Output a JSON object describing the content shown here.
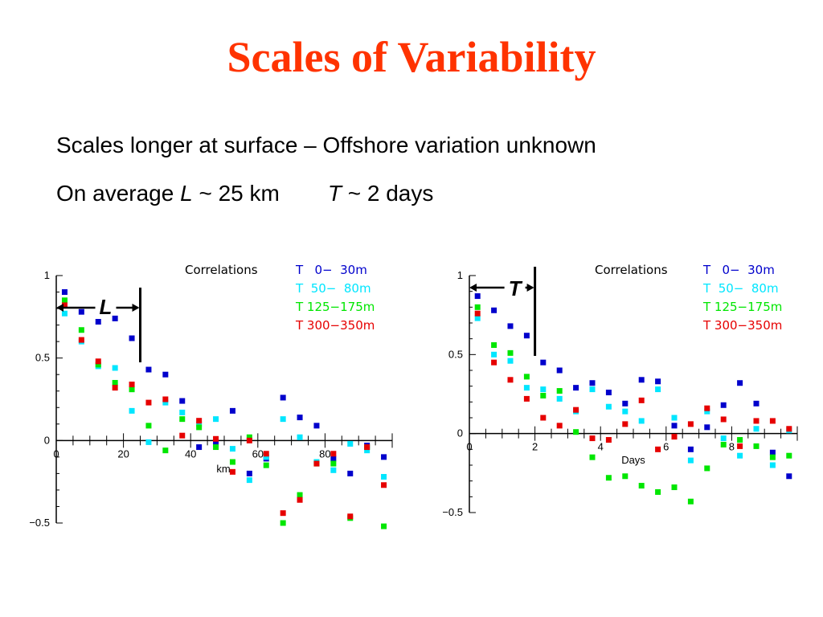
{
  "slide": {
    "title": "Scales of Variability",
    "line1": "Scales longer at surface – Offshore variation unknown",
    "line2": {
      "prefix": "On average ",
      "L": "L",
      "L_value": " ~ 25 km",
      "T": "T",
      "T_value": " ~ 2 days"
    }
  },
  "colors": {
    "title": "#ff3300",
    "series": [
      "#0000cc",
      "#00e6ff",
      "#00e600",
      "#e60000"
    ]
  },
  "chart_data": [
    {
      "type": "scatter",
      "title": "Correlations",
      "xlabel": "km",
      "ylabel": "",
      "xlim": [
        0,
        100
      ],
      "ylim": [
        -0.5,
        1
      ],
      "x_ticks": [
        0,
        20,
        40,
        60,
        80
      ],
      "y_ticks": [
        -0.5,
        0,
        0.5,
        1
      ],
      "y_tick_labels": [
        "−0.5",
        "0",
        "0.5",
        "1"
      ],
      "legend_position": "top-right",
      "marker": {
        "label": "L",
        "x": 25
      },
      "series": [
        {
          "name": "T   0−  30m",
          "x": [
            2.5,
            7.5,
            12.5,
            17.5,
            22.5,
            27.5,
            32.5,
            37.5,
            42.5,
            47.5,
            52.5,
            57.5,
            62.5,
            67.5,
            72.5,
            77.5,
            82.5,
            87.5,
            92.5,
            97.5
          ],
          "y": [
            0.9,
            0.78,
            0.72,
            0.74,
            0.62,
            0.43,
            0.4,
            0.24,
            -0.04,
            -0.02,
            0.18,
            -0.2,
            -0.11,
            0.26,
            0.14,
            0.09,
            -0.11,
            -0.2,
            -0.03,
            -0.1
          ]
        },
        {
          "name": "T  50−  80m",
          "x": [
            2.5,
            7.5,
            12.5,
            17.5,
            22.5,
            27.5,
            32.5,
            37.5,
            42.5,
            47.5,
            52.5,
            57.5,
            62.5,
            67.5,
            72.5,
            77.5,
            82.5,
            87.5,
            92.5,
            97.5
          ],
          "y": [
            0.77,
            0.6,
            0.45,
            0.44,
            0.18,
            -0.01,
            0.23,
            0.17,
            0.1,
            0.13,
            -0.05,
            -0.24,
            -0.1,
            0.13,
            0.02,
            -0.13,
            -0.18,
            -0.02,
            -0.06,
            -0.22
          ]
        },
        {
          "name": "T 125−175m",
          "x": [
            2.5,
            7.5,
            12.5,
            17.5,
            22.5,
            27.5,
            32.5,
            37.5,
            42.5,
            47.5,
            52.5,
            57.5,
            62.5,
            67.5,
            72.5,
            77.5,
            82.5,
            87.5,
            92.5,
            97.5
          ],
          "y": [
            0.85,
            0.67,
            0.46,
            0.35,
            0.31,
            0.09,
            -0.06,
            0.13,
            0.08,
            -0.04,
            -0.13,
            0.02,
            -0.15,
            -0.5,
            -0.33,
            -0.14,
            -0.14,
            -0.47,
            -0.04,
            -0.52
          ]
        },
        {
          "name": "T 300−350m",
          "x": [
            2.5,
            7.5,
            12.5,
            17.5,
            22.5,
            27.5,
            32.5,
            37.5,
            42.5,
            47.5,
            52.5,
            57.5,
            62.5,
            67.5,
            72.5,
            77.5,
            82.5,
            87.5,
            92.5,
            97.5
          ],
          "y": [
            0.82,
            0.61,
            0.48,
            0.32,
            0.34,
            0.23,
            0.25,
            0.03,
            0.12,
            0.01,
            -0.19,
            0.0,
            -0.08,
            -0.44,
            -0.36,
            -0.14,
            -0.08,
            -0.46,
            -0.04,
            -0.27
          ]
        }
      ]
    },
    {
      "type": "scatter",
      "title": "Correlations",
      "xlabel": "Days",
      "ylabel": "",
      "xlim": [
        0,
        10
      ],
      "ylim": [
        -0.5,
        1
      ],
      "x_ticks": [
        0,
        2,
        4,
        6,
        8
      ],
      "y_ticks": [
        -0.5,
        0,
        0.5,
        1
      ],
      "y_tick_labels": [
        "−0.5",
        "0",
        "0.5",
        "1"
      ],
      "legend_position": "top-right",
      "marker": {
        "label": "T",
        "x": 2
      },
      "series": [
        {
          "name": "T   0−  30m",
          "x": [
            0.25,
            0.75,
            1.25,
            1.75,
            2.25,
            2.75,
            3.25,
            3.75,
            4.25,
            4.75,
            5.25,
            5.75,
            6.25,
            6.75,
            7.25,
            7.75,
            8.25,
            8.75,
            9.25,
            9.75
          ],
          "y": [
            0.87,
            0.78,
            0.68,
            0.62,
            0.45,
            0.4,
            0.29,
            0.32,
            0.26,
            0.19,
            0.34,
            0.33,
            0.05,
            -0.1,
            0.04,
            0.18,
            0.32,
            0.19,
            -0.12,
            -0.27
          ]
        },
        {
          "name": "T  50−  80m",
          "x": [
            0.25,
            0.75,
            1.25,
            1.75,
            2.25,
            2.75,
            3.25,
            3.75,
            4.25,
            4.75,
            5.25,
            5.75,
            6.25,
            6.75,
            7.25,
            7.75,
            8.25,
            8.75,
            9.25,
            9.75
          ],
          "y": [
            0.73,
            0.5,
            0.46,
            0.29,
            0.28,
            0.22,
            0.14,
            0.28,
            0.17,
            0.14,
            0.08,
            0.28,
            0.1,
            -0.17,
            0.14,
            -0.03,
            -0.14,
            0.03,
            -0.2,
            0.02
          ]
        },
        {
          "name": "T 125−175m",
          "x": [
            0.25,
            0.75,
            1.25,
            1.75,
            2.25,
            2.75,
            3.25,
            3.75,
            4.25,
            4.75,
            5.25,
            5.75,
            6.25,
            6.75,
            7.25,
            7.75,
            8.25,
            8.75,
            9.25,
            9.75
          ],
          "y": [
            0.8,
            0.56,
            0.51,
            0.36,
            0.24,
            0.27,
            0.01,
            -0.15,
            -0.28,
            -0.27,
            -0.33,
            -0.37,
            -0.34,
            -0.43,
            -0.22,
            -0.07,
            -0.04,
            -0.08,
            -0.15,
            -0.14
          ]
        },
        {
          "name": "T 300−350m",
          "x": [
            0.25,
            0.75,
            1.25,
            1.75,
            2.25,
            2.75,
            3.25,
            3.75,
            4.25,
            4.75,
            5.25,
            5.75,
            6.25,
            6.75,
            7.25,
            7.75,
            8.25,
            8.75,
            9.25,
            9.75
          ],
          "y": [
            0.76,
            0.45,
            0.34,
            0.22,
            0.1,
            0.05,
            0.15,
            -0.03,
            -0.04,
            0.06,
            0.21,
            -0.1,
            -0.02,
            0.06,
            0.16,
            0.09,
            -0.08,
            0.08,
            0.08,
            0.03
          ]
        }
      ]
    }
  ]
}
